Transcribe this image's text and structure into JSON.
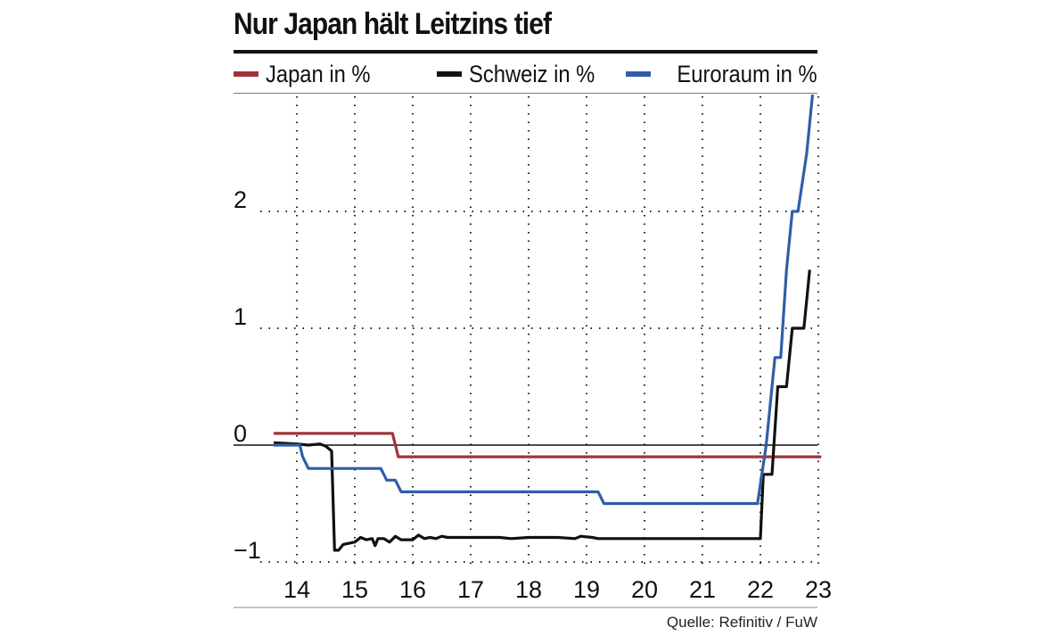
{
  "chart_data": {
    "type": "line",
    "title": "Nur Japan hält Leitzins tief",
    "xlabel": "",
    "ylabel": "",
    "xlim": [
      13.5,
      23.2
    ],
    "ylim": [
      -1.0,
      3.0
    ],
    "x_ticks": [
      14,
      15,
      16,
      17,
      18,
      19,
      20,
      21,
      22,
      23
    ],
    "x_tick_labels": [
      "14",
      "15",
      "16",
      "17",
      "18",
      "19",
      "20",
      "21",
      "22",
      "23"
    ],
    "y_ticks": [
      -1,
      0,
      1,
      2
    ],
    "y_tick_labels": [
      "−1",
      "0",
      "1",
      "2"
    ],
    "grid": "dotted",
    "legend_placement": "top",
    "source": "Quelle: Refinitiv / FuW",
    "series": [
      {
        "name": "Japan in %",
        "color": "#a0333a",
        "points": [
          [
            13.6,
            0.1
          ],
          [
            15.65,
            0.1
          ],
          [
            15.75,
            -0.1
          ],
          [
            23.05,
            -0.1
          ]
        ]
      },
      {
        "name": "Schweiz in %",
        "color": "#111111",
        "points": [
          [
            13.6,
            0.02
          ],
          [
            14.0,
            0.01
          ],
          [
            14.2,
            0.0
          ],
          [
            14.4,
            0.01
          ],
          [
            14.5,
            -0.01
          ],
          [
            14.6,
            -0.05
          ],
          [
            14.65,
            -0.9
          ],
          [
            14.72,
            -0.9
          ],
          [
            14.8,
            -0.85
          ],
          [
            15.0,
            -0.83
          ],
          [
            15.1,
            -0.79
          ],
          [
            15.2,
            -0.81
          ],
          [
            15.3,
            -0.8
          ],
          [
            15.35,
            -0.86
          ],
          [
            15.4,
            -0.8
          ],
          [
            15.5,
            -0.8
          ],
          [
            15.6,
            -0.83
          ],
          [
            15.7,
            -0.78
          ],
          [
            15.8,
            -0.81
          ],
          [
            16.0,
            -0.81
          ],
          [
            16.1,
            -0.77
          ],
          [
            16.2,
            -0.8
          ],
          [
            16.3,
            -0.79
          ],
          [
            16.4,
            -0.8
          ],
          [
            16.5,
            -0.78
          ],
          [
            16.6,
            -0.79
          ],
          [
            17.0,
            -0.79
          ],
          [
            17.5,
            -0.79
          ],
          [
            17.7,
            -0.8
          ],
          [
            18.0,
            -0.79
          ],
          [
            18.5,
            -0.79
          ],
          [
            18.8,
            -0.8
          ],
          [
            18.9,
            -0.78
          ],
          [
            19.1,
            -0.79
          ],
          [
            19.2,
            -0.8
          ],
          [
            22.0,
            -0.8
          ],
          [
            22.05,
            -0.25
          ],
          [
            22.2,
            -0.25
          ],
          [
            22.3,
            0.5
          ],
          [
            22.45,
            0.5
          ],
          [
            22.55,
            1.0
          ],
          [
            22.75,
            1.0
          ],
          [
            22.85,
            1.5
          ]
        ]
      },
      {
        "name": "Euroraum in %",
        "color": "#2f5ea8",
        "points": [
          [
            13.6,
            0.0
          ],
          [
            14.05,
            0.0
          ],
          [
            14.1,
            -0.1
          ],
          [
            14.2,
            -0.2
          ],
          [
            15.45,
            -0.2
          ],
          [
            15.55,
            -0.3
          ],
          [
            15.7,
            -0.3
          ],
          [
            15.8,
            -0.4
          ],
          [
            19.2,
            -0.4
          ],
          [
            19.3,
            -0.5
          ],
          [
            21.95,
            -0.5
          ],
          [
            22.1,
            0.0
          ],
          [
            22.25,
            0.75
          ],
          [
            22.35,
            0.75
          ],
          [
            22.45,
            1.5
          ],
          [
            22.55,
            2.0
          ],
          [
            22.65,
            2.0
          ],
          [
            22.8,
            2.5
          ],
          [
            22.9,
            3.0
          ]
        ]
      }
    ]
  }
}
